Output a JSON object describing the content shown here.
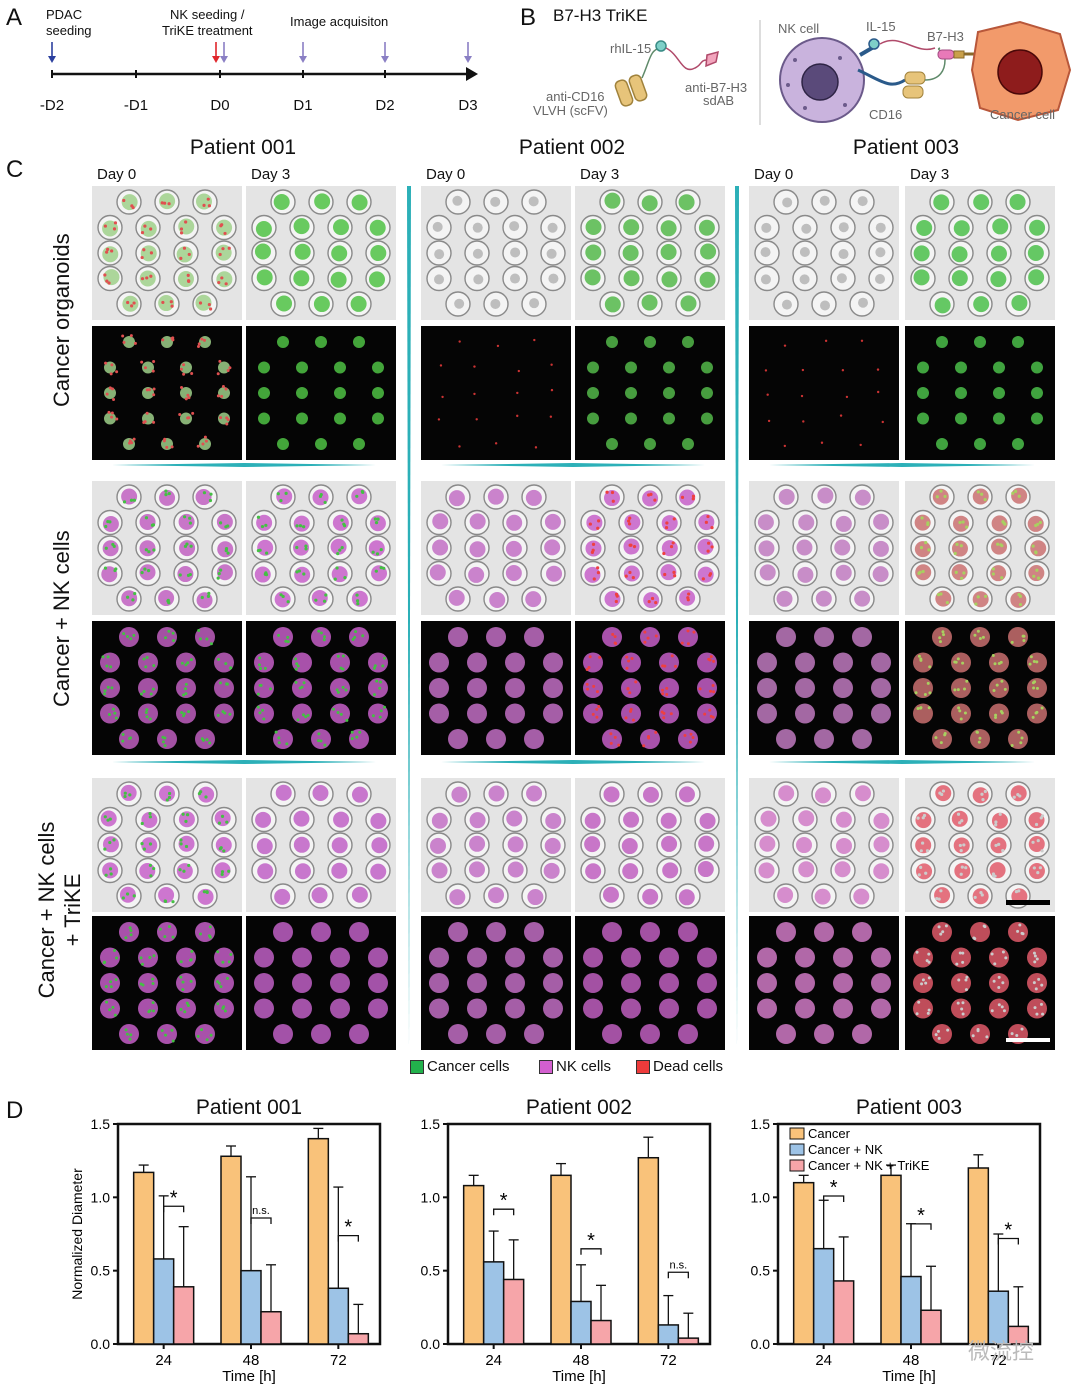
{
  "panels": {
    "A": "A",
    "B": "B",
    "C": "C",
    "D": "D"
  },
  "timeline": {
    "events": [
      {
        "label": "PDAC\nseeding"
      },
      {
        "label": "NK seeding /\nTriKE treatment"
      },
      {
        "label": "Image acquisiton"
      }
    ],
    "ticks": [
      "-D2",
      "-D1",
      "D0",
      "D1",
      "D2",
      "D3"
    ],
    "colors": {
      "seeding": "#2b3f9e",
      "treatment": "#e0262b",
      "imaging": "#8a7fc4"
    }
  },
  "trike": {
    "title": "B7-H3 TriKE",
    "labels": {
      "rhil15": "rhIL-15",
      "antiCD16": "anti-CD16",
      "vlvh": "VLVH (scFV)",
      "antiB7": "anti-B7-H3",
      "sdab": "sdAB",
      "nkcell": "NK cell",
      "il15": "IL-15",
      "b7h3": "B7-H3",
      "cd16": "CD16",
      "cancer": "Cancer cell"
    }
  },
  "grid": {
    "patients": [
      "Patient 001",
      "Patient 002",
      "Patient 003"
    ],
    "days": [
      "Day 0",
      "Day 3"
    ],
    "rows": [
      "Cancer organoids",
      "Cancer + NK cells",
      "Cancer + NK cells + TriKE"
    ],
    "legend": [
      {
        "label": "Cancer cells",
        "color": "#22b14c"
      },
      {
        "label": "NK cells",
        "color": "#d35fcf"
      },
      {
        "label": "Dead cells",
        "color": "#ee3b3b"
      }
    ]
  },
  "chart_data": [
    {
      "type": "bar",
      "title": "Patient 001",
      "xlabel": "Time [h]",
      "ylabel": "Normalized Diameter",
      "categories": [
        "24",
        "48",
        "72"
      ],
      "ylim": [
        0,
        1.5
      ],
      "yticks": [
        "0.0",
        "0.5",
        "1.0",
        "1.5"
      ],
      "series": [
        {
          "name": "Cancer",
          "color": "#f9c27a",
          "values": [
            1.17,
            1.28,
            1.4
          ],
          "errors": [
            0.05,
            0.07,
            0.07
          ]
        },
        {
          "name": "Cancer + NK",
          "color": "#9dc3e6",
          "values": [
            0.58,
            0.5,
            0.38
          ],
          "errors": [
            0.43,
            0.64,
            0.69
          ]
        },
        {
          "name": "Cancer + NK + TriKE",
          "color": "#f6a5a9",
          "values": [
            0.39,
            0.22,
            0.07
          ],
          "errors": [
            0.41,
            0.32,
            0.2
          ]
        }
      ],
      "annotations": [
        "*",
        "n.s.",
        "*"
      ]
    },
    {
      "type": "bar",
      "title": "Patient 002",
      "xlabel": "Time [h]",
      "ylabel": "",
      "categories": [
        "24",
        "48",
        "72"
      ],
      "ylim": [
        0,
        1.5
      ],
      "yticks": [
        "0.0",
        "0.5",
        "1.0",
        "1.5"
      ],
      "series": [
        {
          "name": "Cancer",
          "color": "#f9c27a",
          "values": [
            1.08,
            1.15,
            1.27
          ],
          "errors": [
            0.07,
            0.08,
            0.14
          ]
        },
        {
          "name": "Cancer + NK",
          "color": "#9dc3e6",
          "values": [
            0.56,
            0.29,
            0.13
          ],
          "errors": [
            0.21,
            0.25,
            0.2
          ]
        },
        {
          "name": "Cancer + NK + TriKE",
          "color": "#f6a5a9",
          "values": [
            0.44,
            0.16,
            0.04
          ],
          "errors": [
            0.27,
            0.24,
            0.17
          ]
        }
      ],
      "annotations": [
        "*",
        "*",
        "n.s."
      ]
    },
    {
      "type": "bar",
      "title": "Patient 003",
      "xlabel": "Time [h]",
      "ylabel": "",
      "categories": [
        "24",
        "48",
        "72"
      ],
      "ylim": [
        0,
        1.5
      ],
      "yticks": [
        "0.0",
        "0.5",
        "1.0",
        "1.5"
      ],
      "series": [
        {
          "name": "Cancer",
          "color": "#f9c27a",
          "values": [
            1.1,
            1.15,
            1.2
          ],
          "errors": [
            0.05,
            0.07,
            0.09
          ]
        },
        {
          "name": "Cancer + NK",
          "color": "#9dc3e6",
          "values": [
            0.65,
            0.46,
            0.36
          ],
          "errors": [
            0.33,
            0.36,
            0.39
          ]
        },
        {
          "name": "Cancer + NK + TriKE",
          "color": "#f6a5a9",
          "values": [
            0.43,
            0.23,
            0.12
          ],
          "errors": [
            0.3,
            0.3,
            0.27
          ]
        }
      ],
      "annotations": [
        "*",
        "*",
        "*"
      ],
      "legend": "top-left"
    }
  ],
  "watermark": "微流控"
}
